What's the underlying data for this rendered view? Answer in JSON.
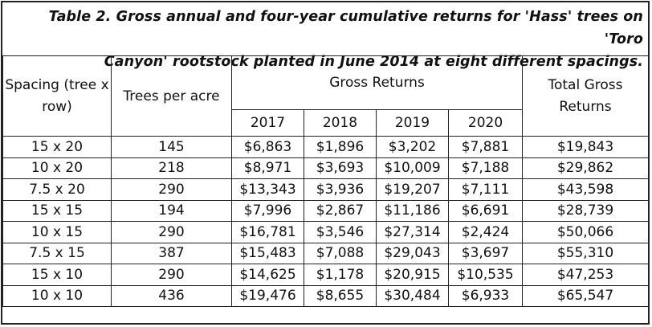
{
  "caption": {
    "line1": "Table 2. Gross annual and four-year cumulative returns for 'Hass' trees on 'Toro",
    "line2": "Canyon' rootstock planted in June 2014 at eight different spacings."
  },
  "headers": {
    "spacing": "Spacing (tree x row)",
    "trees_per_acre": "Trees per acre",
    "gross_returns": "Gross Returns",
    "total_gross_returns": "Total Gross Returns",
    "years": [
      "2017",
      "2018",
      "2019",
      "2020"
    ]
  },
  "rows": [
    {
      "spacing": "15 x 20",
      "trees": "145",
      "y2017": "$6,863",
      "y2018": "$1,896",
      "y2019": "$3,202",
      "y2020": "$7,881",
      "total": "$19,843"
    },
    {
      "spacing": "10 x 20",
      "trees": "218",
      "y2017": "$8,971",
      "y2018": "$3,693",
      "y2019": "$10,009",
      "y2020": "$7,188",
      "total": "$29,862"
    },
    {
      "spacing": "7.5 x 20",
      "trees": "290",
      "y2017": "$13,343",
      "y2018": "$3,936",
      "y2019": "$19,207",
      "y2020": "$7,111",
      "total": "$43,598"
    },
    {
      "spacing": "15 x 15",
      "trees": "194",
      "y2017": "$7,996",
      "y2018": "$2,867",
      "y2019": "$11,186",
      "y2020": "$6,691",
      "total": "$28,739"
    },
    {
      "spacing": "10 x 15",
      "trees": "290",
      "y2017": "$16,781",
      "y2018": "$3,546",
      "y2019": "$27,314",
      "y2020": "$2,424",
      "total": "$50,066"
    },
    {
      "spacing": "7.5 x 15",
      "trees": "387",
      "y2017": "$15,483",
      "y2018": "$7,088",
      "y2019": "$29,043",
      "y2020": "$3,697",
      "total": "$55,310"
    },
    {
      "spacing": "15 x 10",
      "trees": "290",
      "y2017": "$14,625",
      "y2018": "$1,178",
      "y2019": "$20,915",
      "y2020": "$10,535",
      "total": "$47,253"
    },
    {
      "spacing": "10 x 10",
      "trees": "436",
      "y2017": "$19,476",
      "y2018": "$8,655",
      "y2019": "$30,484",
      "y2020": "$6,933",
      "total": "$65,547"
    }
  ]
}
